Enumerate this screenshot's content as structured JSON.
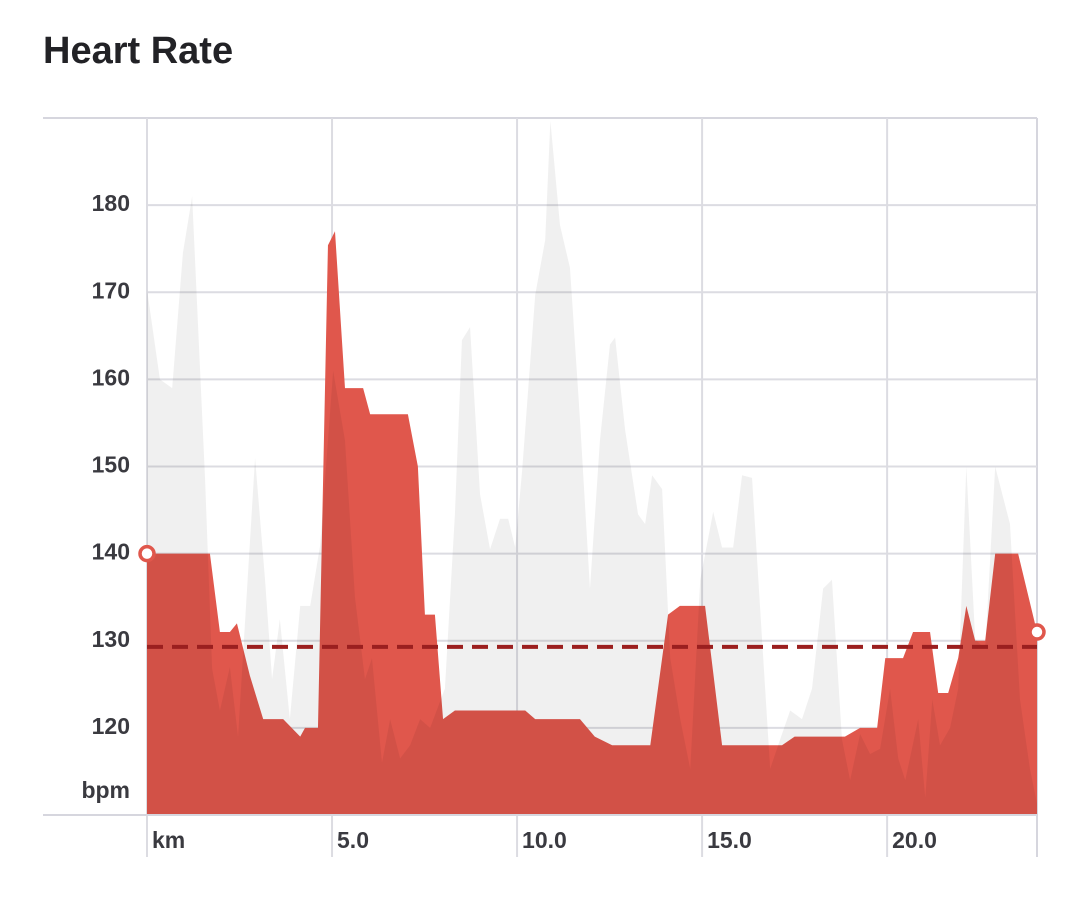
{
  "chart_data": {
    "type": "area",
    "title": "Heart Rate",
    "y_label": "bpm",
    "xlim": [
      0,
      24.05
    ],
    "ylim": [
      110,
      190
    ],
    "xticks": [
      {
        "value": 0,
        "label": "km"
      },
      {
        "value": 5,
        "label": "5.0"
      },
      {
        "value": 10,
        "label": "10.0"
      },
      {
        "value": 15,
        "label": "15.0"
      },
      {
        "value": 20,
        "label": "20.0"
      }
    ],
    "yticks": [
      120,
      130,
      140,
      150,
      160,
      170,
      180
    ],
    "grid": true,
    "series": [
      {
        "color": "#e0574c",
        "x": [
          0,
          1.7,
          1.97,
          2.24,
          2.43,
          2.78,
          3.14,
          3.68,
          4.14,
          4.27,
          4.62,
          4.89,
          5.08,
          5.35,
          5.84,
          6.03,
          7.05,
          7.32,
          7.51,
          7.78,
          8.0,
          8.32,
          10.22,
          10.49,
          11.7,
          12.1,
          12.57,
          13.6,
          14.08,
          14.4,
          15.08,
          15.54,
          17.16,
          17.5,
          18.86,
          19.27,
          19.73,
          19.95,
          20.43,
          20.7,
          21.16,
          21.38,
          21.65,
          21.92,
          22.14,
          22.38,
          22.65,
          22.92,
          23.54,
          24.05
        ],
        "values": [
          140,
          140,
          131,
          131,
          132,
          126,
          121,
          121,
          119,
          120,
          120,
          175.4,
          177,
          159,
          159,
          156,
          156,
          150,
          133,
          133,
          121,
          122,
          122,
          121,
          121,
          119,
          118,
          118,
          133,
          134,
          134,
          118,
          118,
          119,
          119,
          120,
          120,
          128,
          128,
          131,
          131,
          124,
          124,
          128,
          134,
          130,
          130,
          140,
          140,
          131
        ]
      },
      {
        "color": "#000000",
        "x": [
          0,
          0.35,
          0.68,
          0.97,
          1.22,
          1.57,
          1.76,
          1.97,
          2.24,
          2.46,
          2.92,
          3.19,
          3.38,
          3.59,
          3.86,
          4.14,
          4.41,
          4.68,
          5.03,
          5.35,
          5.62,
          5.89,
          6.08,
          6.35,
          6.57,
          6.84,
          7.11,
          7.38,
          7.65,
          8.05,
          8.32,
          8.51,
          8.73,
          9.0,
          9.27,
          9.54,
          9.76,
          9.95,
          10.14,
          10.49,
          10.76,
          10.9,
          11.16,
          11.43,
          11.7,
          11.97,
          12.24,
          12.51,
          12.65,
          12.92,
          13.27,
          13.46,
          13.65,
          13.92,
          14.14,
          14.41,
          14.68,
          14.95,
          15.3,
          15.54,
          15.84,
          16.08,
          16.35,
          16.62,
          16.84,
          17.11,
          17.38,
          17.7,
          17.97,
          18.27,
          18.51,
          18.78,
          19.0,
          19.27,
          19.54,
          19.81,
          20.08,
          20.3,
          20.49,
          20.84,
          21.03,
          21.22,
          21.43,
          21.7,
          21.92,
          22.14,
          22.38,
          22.65,
          22.92,
          23.32,
          23.59,
          23.86,
          24.05
        ],
        "values": [
          170.3,
          160,
          159,
          174.5,
          181,
          148.5,
          126.8,
          122,
          127,
          119,
          151,
          137,
          125.6,
          132.5,
          121,
          134,
          134,
          141,
          161,
          153,
          135,
          125.6,
          128,
          116,
          121,
          116.5,
          118,
          121,
          120,
          124.5,
          144.5,
          164.5,
          166,
          146.8,
          140.5,
          144,
          144,
          140.7,
          149.7,
          169.7,
          176,
          189.7,
          177.7,
          172.8,
          155.4,
          136,
          153,
          164,
          164.8,
          154.2,
          144.5,
          143.4,
          149,
          147.4,
          128,
          121,
          115.3,
          137,
          144.8,
          140.7,
          140.7,
          149,
          148.7,
          130.2,
          115.3,
          118.7,
          122,
          121,
          124.5,
          136,
          137,
          118.7,
          114,
          119.3,
          117,
          117.6,
          124.5,
          116.5,
          114,
          121,
          112,
          123.3,
          118,
          120,
          124.5,
          150,
          130.2,
          129,
          150,
          143.4,
          123.3,
          115.3,
          111.3
        ]
      }
    ],
    "average": 129.3,
    "average_color": "#9b1f1f"
  }
}
